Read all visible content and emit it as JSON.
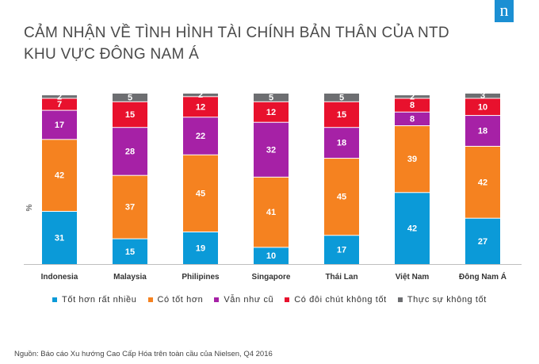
{
  "title_lines": [
    "CẢM NHẬN VỀ TÌNH HÌNH TÀI CHÍNH BẢN THÂN CỦA NTD",
    "KHU VỰC ĐÔNG NAM Á"
  ],
  "logo_letter": "n",
  "source": "Nguồn: Báo cáo Xu hướng Cao Cấp Hóa trên toàn cầu của Nielsen, Q4 2016",
  "colors": {
    "Tốt hơn rất nhiều": "#0b9ad8",
    "Có tốt hơn": "#f58220",
    "Vẫn như cũ": "#a621a6",
    "Có đôi chút không tốt": "#e8112d",
    "Thực sự không tốt": "#6d6e71"
  },
  "chart_data": {
    "type": "bar",
    "stacked": true,
    "ylabel": "%",
    "ylim": [
      0,
      100
    ],
    "categories": [
      "Indonesia",
      "Malaysia",
      "Philipines",
      "Singapore",
      "Thái Lan",
      "Việt Nam",
      "Đông Nam Á"
    ],
    "series": [
      {
        "name": "Tốt hơn rất nhiều",
        "values": [
          31,
          15,
          19,
          10,
          17,
          42,
          27
        ]
      },
      {
        "name": "Có tốt hơn",
        "values": [
          42,
          37,
          45,
          41,
          45,
          39,
          42
        ]
      },
      {
        "name": "Vẫn như cũ",
        "values": [
          17,
          28,
          22,
          32,
          18,
          8,
          18
        ]
      },
      {
        "name": "Có đôi chút không tốt",
        "values": [
          7,
          15,
          12,
          12,
          15,
          8,
          10
        ]
      },
      {
        "name": "Thực sự không tốt",
        "values": [
          2,
          5,
          2,
          5,
          5,
          2,
          3
        ]
      }
    ],
    "legend_position": "bottom",
    "grid": false
  }
}
